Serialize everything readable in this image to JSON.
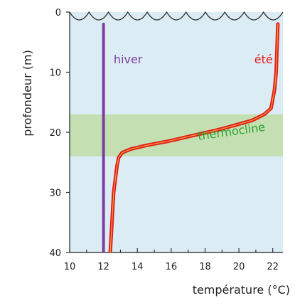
{
  "chart_data": {
    "type": "line",
    "xlabel": "température (°C)",
    "ylabel": "profondeur (m)",
    "xlim": [
      10,
      22.6
    ],
    "ylim": [
      0,
      40
    ],
    "y_inverted": true,
    "x_ticks": [
      10,
      12,
      14,
      16,
      18,
      20,
      22
    ],
    "y_ticks": [
      0,
      10,
      20,
      30,
      40
    ],
    "grid": false,
    "colors": {
      "water": "#dcecf4",
      "thermocline_band": "#c4e0b2",
      "hiver": "#7b3fa0",
      "ete_outer": "#e11b1b",
      "ete_inner": "#f3a63a",
      "thermocline_label": "#2ea12e",
      "axis": "#222222",
      "waves": "#333333"
    },
    "bands": [
      {
        "label": "thermocline",
        "y_range": [
          17,
          24
        ]
      }
    ],
    "series": [
      {
        "name": "hiver",
        "x": [
          12.0,
          12.0
        ],
        "y": [
          2,
          40
        ]
      },
      {
        "name": "été",
        "x": [
          22.3,
          22.25,
          22.2,
          22.1,
          21.9,
          21.5,
          20.8,
          19.8,
          18.6,
          17.2,
          15.8,
          14.5,
          13.6,
          13.1,
          12.9,
          12.8,
          12.6,
          12.5,
          12.4
        ],
        "y": [
          2,
          6,
          10,
          13,
          16,
          17,
          18,
          18.8,
          19.7,
          20.6,
          21.5,
          22.2,
          22.8,
          23.4,
          24.2,
          25.5,
          30,
          35,
          40
        ]
      }
    ],
    "annotations": {
      "hiver": "hiver",
      "ete": "été",
      "thermocline": "thermocline"
    }
  }
}
